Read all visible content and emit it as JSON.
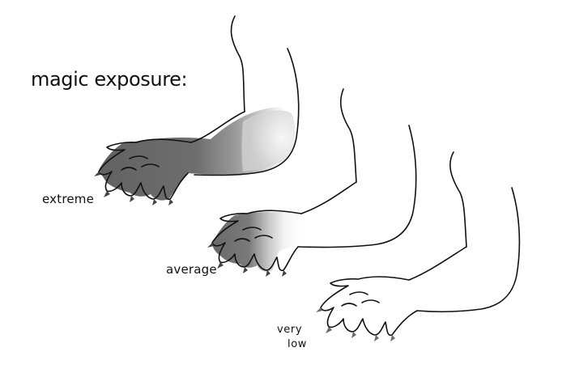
{
  "title": "magic exposure:",
  "levels": [
    {
      "label": "extreme",
      "shading": "dark"
    },
    {
      "label": "average",
      "shading": "partial"
    },
    {
      "label_line1": "very",
      "label_line2": "low",
      "shading": "none"
    }
  ],
  "colors": {
    "ink": "#111111",
    "dark_fill": "#6f6f6f",
    "mid_fill": "#bdbdbd",
    "paper": "#ffffff"
  }
}
